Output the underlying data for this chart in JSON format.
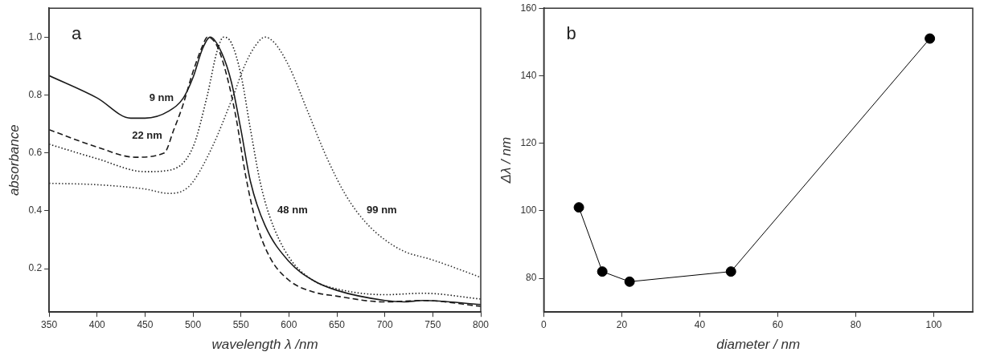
{
  "chart_data": [
    {
      "type": "line",
      "xlabel": "wavelength λ /nm",
      "ylabel": "absorbance",
      "xlim": [
        350,
        800
      ],
      "xticks": [
        350,
        400,
        450,
        500,
        550,
        600,
        650,
        700,
        750,
        800
      ],
      "ylim": [
        0.05,
        1.1
      ],
      "yticks": [
        0.2,
        0.4,
        0.6,
        0.8,
        {
          "value": 1,
          "label": "1.0"
        }
      ],
      "grid": false,
      "legend": false,
      "marker": "none",
      "series": [
        {
          "color": "#1a1a1a",
          "line_style": "solid",
          "x": [
            350,
            400,
            435,
            450,
            475,
            490,
            500,
            510,
            518,
            530,
            540,
            550,
            560,
            575,
            600,
            625,
            650,
            700,
            720,
            740,
            800
          ],
          "values": [
            0.867,
            0.79,
            0.72,
            0.72,
            0.745,
            0.79,
            0.86,
            0.96,
            1.0,
            0.945,
            0.845,
            0.68,
            0.5,
            0.35,
            0.225,
            0.16,
            0.125,
            0.09,
            0.085,
            0.09,
            0.076
          ]
        },
        {
          "color": "#1a1a1a",
          "line_style": "dashed",
          "x": [
            350,
            400,
            440,
            470,
            480,
            489,
            500,
            510,
            515,
            525,
            535,
            545,
            555,
            565,
            580,
            600,
            625,
            650,
            700,
            740,
            800
          ],
          "values": [
            0.68,
            0.62,
            0.585,
            0.6,
            0.68,
            0.76,
            0.88,
            0.97,
            1.0,
            0.97,
            0.87,
            0.72,
            0.52,
            0.37,
            0.24,
            0.16,
            0.12,
            0.105,
            0.085,
            0.09,
            0.07
          ]
        },
        {
          "color": "#1a1a1a",
          "line_style": "dotted",
          "x": [
            350,
            400,
            450,
            475,
            500,
            515,
            525,
            532,
            540,
            550,
            560,
            570,
            580,
            600,
            625,
            650,
            700,
            740,
            800
          ],
          "values": [
            0.63,
            0.58,
            0.535,
            0.54,
            0.62,
            0.8,
            0.95,
            1.0,
            0.98,
            0.87,
            0.68,
            0.5,
            0.38,
            0.24,
            0.16,
            0.13,
            0.11,
            0.115,
            0.095
          ]
        },
        {
          "color": "#333333",
          "line_style": "dotted",
          "x": [
            350,
            400,
            450,
            475,
            490,
            500,
            520,
            540,
            555,
            565,
            575,
            585,
            600,
            620,
            640,
            660,
            680,
            700,
            720,
            750,
            800
          ],
          "values": [
            0.495,
            0.49,
            0.475,
            0.46,
            0.47,
            0.5,
            0.62,
            0.78,
            0.91,
            0.97,
            1.0,
            0.98,
            0.9,
            0.74,
            0.58,
            0.45,
            0.36,
            0.3,
            0.26,
            0.23,
            0.17
          ]
        }
      ],
      "annotations": [
        "a",
        {
          "text": "9 nm",
          "x": 490,
          "y": 0.79
        },
        {
          "text": "22 nm",
          "x": 478,
          "y": 0.66
        },
        {
          "text": "48 nm",
          "x": 578,
          "y": 0.4
        },
        {
          "text": "99 nm",
          "x": 671,
          "y": 0.4
        }
      ]
    },
    {
      "type": "line",
      "xlabel": "diameter / nm",
      "ylabel": "Δλ / nm",
      "xlim": [
        0,
        110
      ],
      "xticks": [
        0,
        20,
        40,
        60,
        80,
        100
      ],
      "ylim": [
        70,
        160
      ],
      "yticks": [
        80,
        100,
        120,
        140,
        160
      ],
      "grid": false,
      "legend": false,
      "marker": "circle",
      "line_style": "solid",
      "series": [
        {
          "color": "#000000",
          "x": [
            9,
            15,
            22,
            48,
            99
          ],
          "values": [
            101,
            82,
            79,
            82,
            151
          ]
        }
      ],
      "annotations": [
        "b"
      ]
    }
  ]
}
